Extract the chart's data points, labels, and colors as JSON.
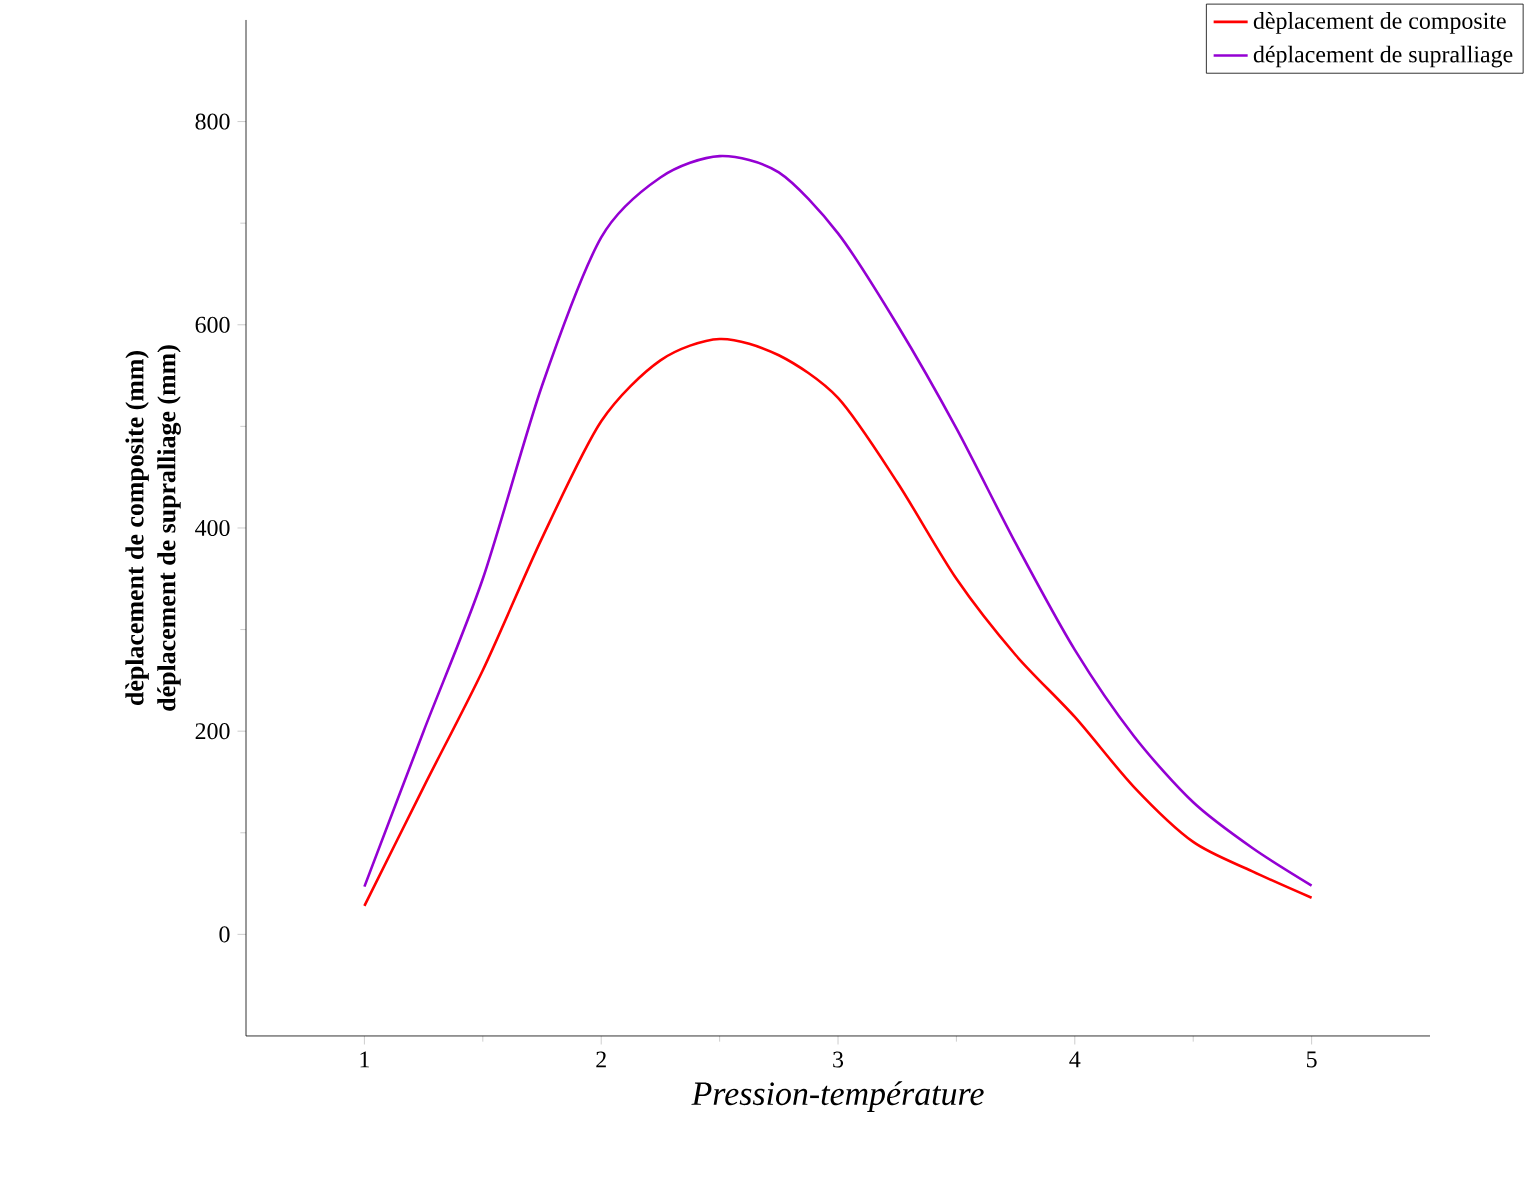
{
  "chart_data": {
    "type": "line",
    "xlabel": "Pression-température",
    "ylabel": [
      "dèplacement de composite (mm)",
      "déplacement de supralliage (mm)"
    ],
    "x": [
      1,
      1.25,
      1.5,
      1.75,
      2,
      2.25,
      2.5,
      2.75,
      3,
      3.25,
      3.5,
      3.75,
      4,
      4.25,
      4.5,
      4.75,
      5
    ],
    "series": [
      {
        "name": "dèplacement de composite",
        "color": "#ff0000",
        "values": [
          28,
          145,
          260,
          390,
          505,
          565,
          586,
          570,
          528,
          445,
          350,
          275,
          214,
          145,
          91,
          62,
          36
        ]
      },
      {
        "name": "déplacement de supralliage",
        "color": "#9400d3",
        "values": [
          47,
          200,
          350,
          540,
          686,
          745,
          766,
          750,
          690,
          600,
          498,
          385,
          280,
          195,
          130,
          85,
          48
        ]
      }
    ],
    "xlim": [
      0.5,
      5.5
    ],
    "ylim": [
      -100,
      900
    ],
    "xticks": [
      1,
      2,
      3,
      4,
      5
    ],
    "yticks": [
      0,
      200,
      400,
      600,
      800
    ],
    "legend": "top right",
    "grid": false,
    "marker": "none",
    "line_style": "solid"
  }
}
